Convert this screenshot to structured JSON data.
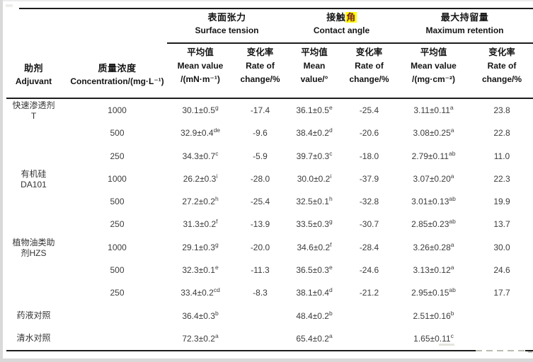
{
  "header": {
    "col1_cn": "助剂",
    "col1_en": "Adjuvant",
    "col2_cn": "质量浓度",
    "col2_en": "Concentration/(mg·L⁻¹)",
    "groups": [
      {
        "cn": "表面张力",
        "en": "Surface tension"
      },
      {
        "cn_pre": "接触",
        "cn_hl": "角",
        "en": "Contact angle"
      },
      {
        "cn": "最大持留量",
        "en": "Maximum retention"
      }
    ],
    "subcols": [
      {
        "l1": "平均值",
        "l2": "Mean value",
        "l3": "/(mN·m⁻¹)"
      },
      {
        "l1": "变化率",
        "l2": "Rate of",
        "l3": "change/%"
      },
      {
        "l1": "平均值",
        "l2": "Mean",
        "l3": "value/°"
      },
      {
        "l1": "变化率",
        "l2": "Rate of",
        "l3": "change/%"
      },
      {
        "l1": "平均值",
        "l2": "Mean value",
        "l3": "/(mg·cm⁻²)"
      },
      {
        "l1": "变化率",
        "l2": "Rate of",
        "l3": "change/%"
      }
    ]
  },
  "highlight": {
    "background": "#ffff00",
    "text_color": "#7b241c"
  },
  "table": {
    "rows": [
      {
        "adjuvant": [
          "快速渗透剂",
          "T"
        ],
        "conc": "1000",
        "st_mean": "30.1±0.5",
        "st_sup": "g",
        "st_rate": "-17.4",
        "ca_mean": "36.1±0.5",
        "ca_sup": "e",
        "ca_rate": "-25.4",
        "mr_mean": "3.11±0.11",
        "mr_sup": "a",
        "mr_rate": "23.8"
      },
      {
        "adjuvant": [],
        "conc": "500",
        "st_mean": "32.9±0.4",
        "st_sup": "de",
        "st_rate": "-9.6",
        "ca_mean": "38.4±0.2",
        "ca_sup": "d",
        "ca_rate": "-20.6",
        "mr_mean": "3.08±0.25",
        "mr_sup": "a",
        "mr_rate": "22.8"
      },
      {
        "adjuvant": [],
        "conc": "250",
        "st_mean": "34.3±0.7",
        "st_sup": "c",
        "st_rate": "-5.9",
        "ca_mean": "39.7±0.3",
        "ca_sup": "c",
        "ca_rate": "-18.0",
        "mr_mean": "2.79±0.11",
        "mr_sup": "ab",
        "mr_rate": "11.0"
      },
      {
        "adjuvant": [
          "有机硅",
          "DA101"
        ],
        "conc": "1000",
        "st_mean": "26.2±0.3",
        "st_sup": "i",
        "st_rate": "-28.0",
        "ca_mean": "30.0±0.2",
        "ca_sup": "i",
        "ca_rate": "-37.9",
        "mr_mean": "3.07±0.20",
        "mr_sup": "a",
        "mr_rate": "22.3"
      },
      {
        "adjuvant": [],
        "conc": "500",
        "st_mean": "27.2±0.2",
        "st_sup": "h",
        "st_rate": "-25.4",
        "ca_mean": "32.5±0.1",
        "ca_sup": "h",
        "ca_rate": "-32.8",
        "mr_mean": "3.01±0.13",
        "mr_sup": "ab",
        "mr_rate": "19.9"
      },
      {
        "adjuvant": [],
        "conc": "250",
        "st_mean": "31.3±0.2",
        "st_sup": "f",
        "st_rate": "-13.9",
        "ca_mean": "33.5±0.3",
        "ca_sup": "g",
        "ca_rate": "-30.7",
        "mr_mean": "2.85±0.23",
        "mr_sup": "ab",
        "mr_rate": "13.7"
      },
      {
        "adjuvant": [
          "植物油类助",
          "剂HZS"
        ],
        "conc": "1000",
        "st_mean": "29.1±0.3",
        "st_sup": "g",
        "st_rate": "-20.0",
        "ca_mean": "34.6±0.2",
        "ca_sup": "f",
        "ca_rate": "-28.4",
        "mr_mean": "3.26±0.28",
        "mr_sup": "a",
        "mr_rate": "30.0"
      },
      {
        "adjuvant": [],
        "conc": "500",
        "st_mean": "32.3±0.1",
        "st_sup": "e",
        "st_rate": "-11.3",
        "ca_mean": "36.5±0.3",
        "ca_sup": "e",
        "ca_rate": "-24.6",
        "mr_mean": "3.13±0.12",
        "mr_sup": "a",
        "mr_rate": "24.6"
      },
      {
        "adjuvant": [],
        "conc": "250",
        "st_mean": "33.4±0.2",
        "st_sup": "cd",
        "st_rate": "-8.3",
        "ca_mean": "38.1±0.4",
        "ca_sup": "d",
        "ca_rate": "-21.2",
        "mr_mean": "2.95±0.15",
        "mr_sup": "ab",
        "mr_rate": "17.7"
      },
      {
        "adjuvant": [
          "药液对照"
        ],
        "conc": "",
        "st_mean": "36.4±0.3",
        "st_sup": "b",
        "st_rate": "",
        "ca_mean": "48.4±0.2",
        "ca_sup": "b",
        "ca_rate": "",
        "mr_mean": "2.51±0.16",
        "mr_sup": "b",
        "mr_rate": ""
      },
      {
        "adjuvant": [
          "清水对照"
        ],
        "conc": "",
        "st_mean": "72.3±0.2",
        "st_sup": "a",
        "st_rate": "",
        "ca_mean": "65.4±0.2",
        "ca_sup": "a",
        "ca_rate": "",
        "mr_mean": "1.65±0.11",
        "mr_sup": "c",
        "mr_rate": ""
      }
    ]
  }
}
